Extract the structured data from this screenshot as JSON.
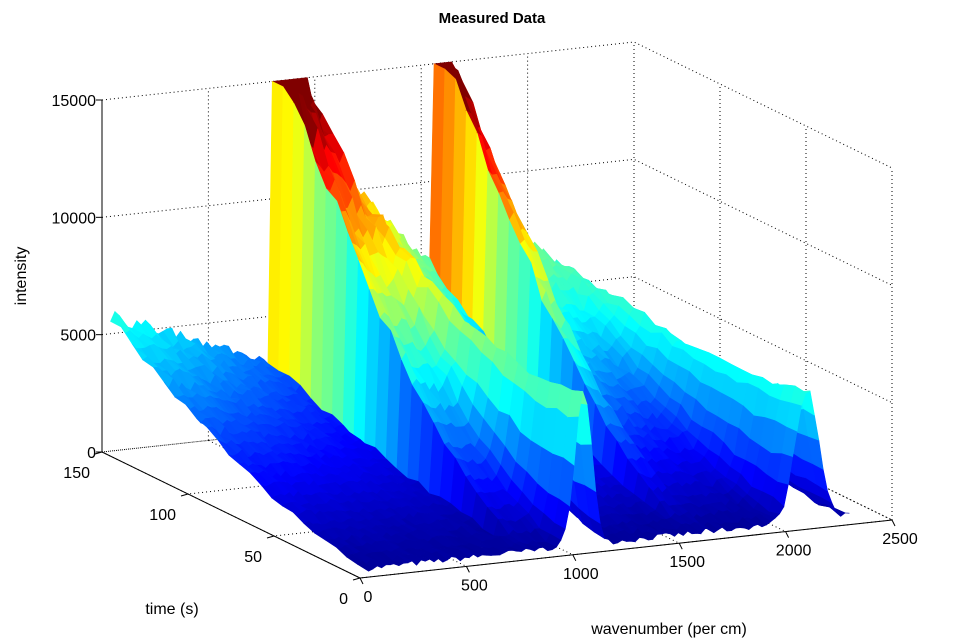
{
  "chart_data": {
    "type": "surface",
    "title": "Measured Data",
    "xlabel": "wavenumber (per cm)",
    "ylabel": "time (s)",
    "zlabel": "intensity",
    "xlim": [
      0,
      2500
    ],
    "ylim": [
      0,
      150
    ],
    "zlim": [
      0,
      15000
    ],
    "xticks": [
      "0",
      "500",
      "1000",
      "1500",
      "2000",
      "2500"
    ],
    "yticks": [
      "0",
      "50",
      "100",
      "150"
    ],
    "zticks": [
      "0",
      "5000",
      "10000",
      "15000"
    ],
    "grid": true,
    "colormap": "jet",
    "series": [
      {
        "description": "low-wavenumber ridge",
        "x_range": [
          0,
          1000
        ],
        "peak_intensity": 5500,
        "peak_time": 150
      },
      {
        "description": "main ridge",
        "x_range": [
          800,
          1650
        ],
        "peak_intensity": 14000,
        "peak_time": 150
      },
      {
        "description": "sharp peak",
        "x": 1050,
        "peak_intensity": 6500,
        "peak_time": 0
      },
      {
        "description": "high-wavenumber ridge",
        "x_range": [
          1550,
          2300
        ],
        "peak_intensity": 11000,
        "peak_time": 150
      },
      {
        "description": "peak near 2100",
        "x": 2100,
        "peak_intensity": 5600,
        "peak_time": 0
      }
    ]
  }
}
